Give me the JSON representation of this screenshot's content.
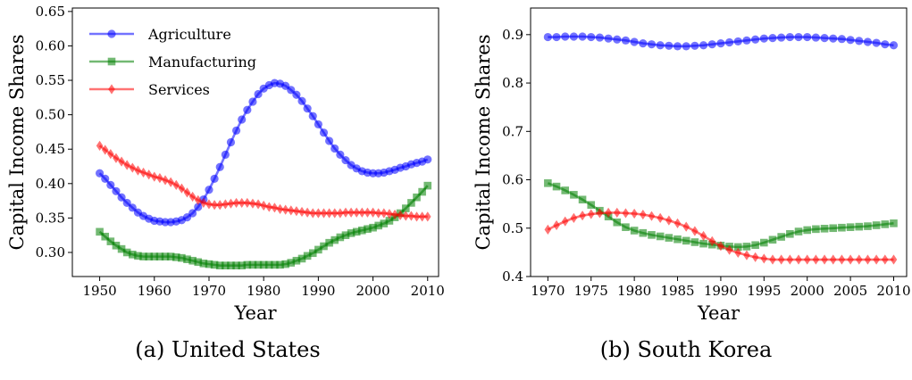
{
  "chart_data": [
    {
      "type": "line",
      "caption": "(a) United States",
      "xlabel": "Year",
      "ylabel": "Capital Income Shares",
      "xlim": [
        1945,
        2012
      ],
      "ylim": [
        0.265,
        0.655
      ],
      "xticks": [
        1950,
        1960,
        1970,
        1980,
        1990,
        2000,
        2010
      ],
      "yticks": [
        0.3,
        0.35,
        0.4,
        0.45,
        0.5,
        0.55,
        0.6,
        0.65
      ],
      "ytick_labels": [
        "0.30",
        "0.35",
        "0.40",
        "0.45",
        "0.50",
        "0.55",
        "0.60",
        "0.65"
      ],
      "legend_position": "top-left",
      "grid": false,
      "series": [
        {
          "name": "Agriculture",
          "color": "#0000ff",
          "marker": "circle",
          "x": [
            1950,
            1951,
            1952,
            1953,
            1954,
            1955,
            1956,
            1957,
            1958,
            1959,
            1960,
            1961,
            1962,
            1963,
            1964,
            1965,
            1966,
            1967,
            1968,
            1969,
            1970,
            1971,
            1972,
            1973,
            1974,
            1975,
            1976,
            1977,
            1978,
            1979,
            1980,
            1981,
            1982,
            1983,
            1984,
            1985,
            1986,
            1987,
            1988,
            1989,
            1990,
            1991,
            1992,
            1993,
            1994,
            1995,
            1996,
            1997,
            1998,
            1999,
            2000,
            2001,
            2002,
            2003,
            2004,
            2005,
            2006,
            2007,
            2008,
            2009,
            2010
          ],
          "y": [
            0.415,
            0.407,
            0.398,
            0.389,
            0.38,
            0.372,
            0.365,
            0.358,
            0.353,
            0.349,
            0.346,
            0.345,
            0.344,
            0.344,
            0.345,
            0.347,
            0.351,
            0.357,
            0.366,
            0.377,
            0.391,
            0.407,
            0.424,
            0.442,
            0.46,
            0.477,
            0.493,
            0.507,
            0.519,
            0.53,
            0.538,
            0.543,
            0.546,
            0.545,
            0.542,
            0.536,
            0.529,
            0.52,
            0.509,
            0.498,
            0.486,
            0.474,
            0.462,
            0.451,
            0.442,
            0.434,
            0.427,
            0.422,
            0.418,
            0.416,
            0.415,
            0.415,
            0.416,
            0.418,
            0.42,
            0.423,
            0.425,
            0.428,
            0.43,
            0.432,
            0.435
          ]
        },
        {
          "name": "Manufacturing",
          "color": "#008000",
          "marker": "square",
          "x": [
            1950,
            1951,
            1952,
            1953,
            1954,
            1955,
            1956,
            1957,
            1958,
            1959,
            1960,
            1961,
            1962,
            1963,
            1964,
            1965,
            1966,
            1967,
            1968,
            1969,
            1970,
            1971,
            1972,
            1973,
            1974,
            1975,
            1976,
            1977,
            1978,
            1979,
            1980,
            1981,
            1982,
            1983,
            1984,
            1985,
            1986,
            1987,
            1988,
            1989,
            1990,
            1991,
            1992,
            1993,
            1994,
            1995,
            1996,
            1997,
            1998,
            1999,
            2000,
            2001,
            2002,
            2003,
            2004,
            2005,
            2006,
            2007,
            2008,
            2009,
            2010
          ],
          "y": [
            0.33,
            0.323,
            0.316,
            0.31,
            0.305,
            0.3,
            0.297,
            0.295,
            0.294,
            0.294,
            0.294,
            0.294,
            0.294,
            0.294,
            0.293,
            0.292,
            0.29,
            0.288,
            0.286,
            0.284,
            0.283,
            0.282,
            0.281,
            0.281,
            0.281,
            0.281,
            0.281,
            0.282,
            0.282,
            0.282,
            0.282,
            0.282,
            0.282,
            0.282,
            0.283,
            0.285,
            0.288,
            0.291,
            0.295,
            0.299,
            0.304,
            0.309,
            0.314,
            0.318,
            0.322,
            0.325,
            0.328,
            0.33,
            0.332,
            0.334,
            0.336,
            0.339,
            0.342,
            0.346,
            0.351,
            0.357,
            0.364,
            0.372,
            0.38,
            0.388,
            0.397
          ]
        },
        {
          "name": "Services",
          "color": "#ff0000",
          "marker": "diamond",
          "x": [
            1950,
            1951,
            1952,
            1953,
            1954,
            1955,
            1956,
            1957,
            1958,
            1959,
            1960,
            1961,
            1962,
            1963,
            1964,
            1965,
            1966,
            1967,
            1968,
            1969,
            1970,
            1971,
            1972,
            1973,
            1974,
            1975,
            1976,
            1977,
            1978,
            1979,
            1980,
            1981,
            1982,
            1983,
            1984,
            1985,
            1986,
            1987,
            1988,
            1989,
            1990,
            1991,
            1992,
            1993,
            1994,
            1995,
            1996,
            1997,
            1998,
            1999,
            2000,
            2001,
            2002,
            2003,
            2004,
            2005,
            2006,
            2007,
            2008,
            2009,
            2010
          ],
          "y": [
            0.455,
            0.449,
            0.443,
            0.437,
            0.432,
            0.427,
            0.423,
            0.419,
            0.416,
            0.413,
            0.41,
            0.408,
            0.405,
            0.402,
            0.398,
            0.393,
            0.387,
            0.381,
            0.376,
            0.372,
            0.37,
            0.369,
            0.369,
            0.37,
            0.371,
            0.372,
            0.372,
            0.372,
            0.371,
            0.37,
            0.368,
            0.366,
            0.365,
            0.363,
            0.362,
            0.361,
            0.36,
            0.359,
            0.358,
            0.357,
            0.357,
            0.357,
            0.357,
            0.357,
            0.357,
            0.358,
            0.358,
            0.358,
            0.358,
            0.358,
            0.358,
            0.357,
            0.357,
            0.356,
            0.355,
            0.354,
            0.353,
            0.353,
            0.352,
            0.352,
            0.352
          ]
        }
      ]
    },
    {
      "type": "line",
      "caption": "(b) South Korea",
      "xlabel": "Year",
      "ylabel": "Capital Income Shares",
      "xlim": [
        1968,
        2011.5
      ],
      "ylim": [
        0.4,
        0.955
      ],
      "xticks": [
        1970,
        1975,
        1980,
        1985,
        1990,
        1995,
        2000,
        2005,
        2010
      ],
      "yticks": [
        0.4,
        0.5,
        0.6,
        0.7,
        0.8,
        0.9
      ],
      "ytick_labels": [
        "0.4",
        "0.5",
        "0.6",
        "0.7",
        "0.8",
        "0.9"
      ],
      "grid": false,
      "series": [
        {
          "name": "Agriculture",
          "color": "#0000ff",
          "marker": "circle",
          "x": [
            1970,
            1971,
            1972,
            1973,
            1974,
            1975,
            1976,
            1977,
            1978,
            1979,
            1980,
            1981,
            1982,
            1983,
            1984,
            1985,
            1986,
            1987,
            1988,
            1989,
            1990,
            1991,
            1992,
            1993,
            1994,
            1995,
            1996,
            1997,
            1998,
            1999,
            2000,
            2001,
            2002,
            2003,
            2004,
            2005,
            2006,
            2007,
            2008,
            2009,
            2010
          ],
          "y": [
            0.895,
            0.895,
            0.896,
            0.896,
            0.896,
            0.895,
            0.894,
            0.892,
            0.89,
            0.888,
            0.885,
            0.882,
            0.88,
            0.878,
            0.877,
            0.876,
            0.876,
            0.877,
            0.878,
            0.88,
            0.882,
            0.884,
            0.886,
            0.888,
            0.89,
            0.892,
            0.893,
            0.894,
            0.895,
            0.895,
            0.895,
            0.894,
            0.893,
            0.892,
            0.891,
            0.889,
            0.887,
            0.885,
            0.883,
            0.88,
            0.878
          ]
        },
        {
          "name": "Manufacturing",
          "color": "#008000",
          "marker": "square",
          "x": [
            1970,
            1971,
            1972,
            1973,
            1974,
            1975,
            1976,
            1977,
            1978,
            1979,
            1980,
            1981,
            1982,
            1983,
            1984,
            1985,
            1986,
            1987,
            1988,
            1989,
            1990,
            1991,
            1992,
            1993,
            1994,
            1995,
            1996,
            1997,
            1998,
            1999,
            2000,
            2001,
            2002,
            2003,
            2004,
            2005,
            2006,
            2007,
            2008,
            2009,
            2010
          ],
          "y": [
            0.593,
            0.586,
            0.578,
            0.569,
            0.559,
            0.548,
            0.536,
            0.524,
            0.512,
            0.502,
            0.495,
            0.49,
            0.486,
            0.483,
            0.48,
            0.477,
            0.474,
            0.471,
            0.468,
            0.466,
            0.464,
            0.462,
            0.461,
            0.462,
            0.465,
            0.47,
            0.476,
            0.482,
            0.488,
            0.493,
            0.496,
            0.498,
            0.499,
            0.5,
            0.501,
            0.502,
            0.503,
            0.504,
            0.506,
            0.508,
            0.51
          ]
        },
        {
          "name": "Services",
          "color": "#ff0000",
          "marker": "diamond",
          "x": [
            1970,
            1971,
            1972,
            1973,
            1974,
            1975,
            1976,
            1977,
            1978,
            1979,
            1980,
            1981,
            1982,
            1983,
            1984,
            1985,
            1986,
            1987,
            1988,
            1989,
            1990,
            1991,
            1992,
            1993,
            1994,
            1995,
            1996,
            1997,
            1998,
            1999,
            2000,
            2001,
            2002,
            2003,
            2004,
            2005,
            2006,
            2007,
            2008,
            2009,
            2010
          ],
          "y": [
            0.497,
            0.506,
            0.514,
            0.521,
            0.526,
            0.529,
            0.531,
            0.532,
            0.532,
            0.531,
            0.53,
            0.528,
            0.525,
            0.521,
            0.516,
            0.51,
            0.503,
            0.494,
            0.484,
            0.473,
            0.463,
            0.455,
            0.449,
            0.444,
            0.44,
            0.437,
            0.435,
            0.435,
            0.435,
            0.435,
            0.435,
            0.435,
            0.435,
            0.435,
            0.435,
            0.435,
            0.435,
            0.435,
            0.435,
            0.435,
            0.435
          ]
        }
      ]
    }
  ]
}
